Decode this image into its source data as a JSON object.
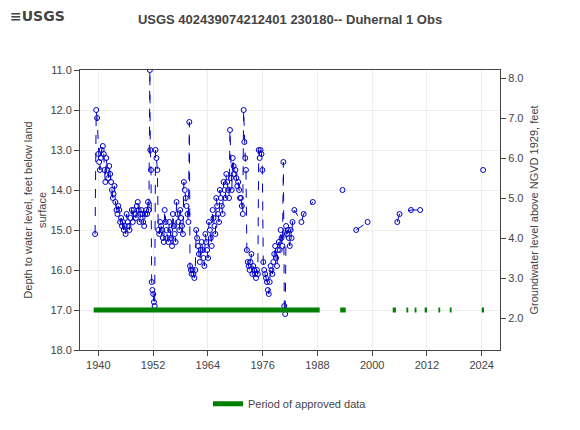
{
  "chart_data": {
    "type": "scatter",
    "title": "USGS 402439074212401 230180-- Duhernal 1 Obs",
    "annotations": [
      "≡USGS"
    ],
    "ylabel": "Depth to water level, feet below land\nsurface",
    "y2label": "Groundwater level above NGVD 1929, feet",
    "xlim": [
      1936,
      2028
    ],
    "xticks": [
      1940,
      1952,
      1964,
      1976,
      1988,
      2000,
      2012,
      2024
    ],
    "ylim": [
      18.0,
      11.0
    ],
    "yticks": [
      {
        "value": 11.0,
        "label": "11.0"
      },
      {
        "value": 12.0,
        "label": "12.0"
      },
      {
        "value": 13.0,
        "label": "13.0"
      },
      {
        "value": 14.0,
        "label": "14.0"
      },
      {
        "value": 15.0,
        "label": "15.0"
      },
      {
        "value": 16.0,
        "label": "16.0"
      },
      {
        "value": 17.0,
        "label": "17.0"
      },
      {
        "value": 18.0,
        "label": "18.0"
      }
    ],
    "y2lim": [
      1.2,
      8.2
    ],
    "y2ticks": [
      {
        "value": 2.0,
        "label": "2.0"
      },
      {
        "value": 3.0,
        "label": "3.0"
      },
      {
        "value": 4.0,
        "label": "4.0"
      },
      {
        "value": 5.0,
        "label": "5.0"
      },
      {
        "value": 6.0,
        "label": "6.0"
      },
      {
        "value": 7.0,
        "label": "7.0"
      },
      {
        "value": 8.0,
        "label": "8.0"
      }
    ],
    "grid": true,
    "legend": "bottom",
    "series": [
      {
        "type": "scatter",
        "color": "#0000cc",
        "marker": "open circle",
        "line_style": "dashed",
        "x": [
          1939.3,
          1939.55,
          1939.75,
          1940.0,
          1940.2,
          1940.35,
          1940.55,
          1940.75,
          1941.0,
          1941.2,
          1941.35,
          1941.55,
          1941.75,
          1942.0,
          1942.2,
          1942.4,
          1942.6,
          1942.8,
          1943.0,
          1943.2,
          1943.35,
          1943.55,
          1943.75,
          1944.0,
          1944.2,
          1944.4,
          1944.6,
          1944.8,
          1945.0,
          1945.2,
          1945.4,
          1945.6,
          1945.8,
          1946.0,
          1946.2,
          1946.45,
          1946.65,
          1946.85,
          1947.05,
          1947.35,
          1947.55,
          1947.75,
          1948.05,
          1948.25,
          1948.45,
          1948.65,
          1948.85,
          1949.05,
          1949.25,
          1949.45,
          1949.65,
          1949.85,
          1950.05,
          1950.3,
          1950.5,
          1950.7,
          1950.9,
          1951.1,
          1951.3,
          1951.4,
          1951.55,
          1951.7,
          1951.85,
          1952.05,
          1952.2,
          1952.35,
          1952.55,
          1952.75,
          1952.95,
          1953.15,
          1953.35,
          1953.55,
          1953.75,
          1953.95,
          1954.15,
          1954.35,
          1954.55,
          1954.75,
          1954.95,
          1955.15,
          1955.35,
          1955.55,
          1955.75,
          1955.95,
          1956.15,
          1956.35,
          1956.55,
          1956.75,
          1956.95,
          1957.15,
          1957.35,
          1957.55,
          1957.75,
          1957.95,
          1958.15,
          1958.35,
          1958.55,
          1958.75,
          1958.95,
          1959.15,
          1959.35,
          1959.55,
          1959.75,
          1959.95,
          1960.1,
          1960.3,
          1960.45,
          1960.65,
          1960.85,
          1961.05,
          1961.25,
          1961.45,
          1961.65,
          1961.85,
          1962.05,
          1962.25,
          1962.45,
          1962.65,
          1962.85,
          1963.05,
          1963.25,
          1963.45,
          1963.65,
          1963.85,
          1964.05,
          1964.25,
          1964.45,
          1964.65,
          1964.85,
          1965.05,
          1965.25,
          1965.45,
          1965.65,
          1965.85,
          1966.05,
          1966.25,
          1966.45,
          1966.65,
          1966.85,
          1967.05,
          1967.25,
          1967.45,
          1967.65,
          1967.85,
          1968.05,
          1968.25,
          1968.45,
          1968.65,
          1968.85,
          1969.05,
          1969.25,
          1969.45,
          1969.65,
          1969.85,
          1970.05,
          1970.25,
          1970.45,
          1970.65,
          1970.85,
          1971.05,
          1971.25,
          1971.45,
          1971.65,
          1971.85,
          1972.0,
          1972.2,
          1972.35,
          1972.55,
          1972.75,
          1972.95,
          1973.15,
          1973.35,
          1973.55,
          1973.75,
          1973.95,
          1974.15,
          1974.35,
          1974.55,
          1974.75,
          1974.95,
          1975.15,
          1975.35,
          1975.55,
          1975.75,
          1975.95,
          1976.15,
          1976.35,
          1976.55,
          1976.75,
          1976.95,
          1977.15,
          1977.35,
          1977.55,
          1977.75,
          1977.95,
          1978.15,
          1978.35,
          1978.55,
          1978.75,
          1978.95,
          1979.15,
          1979.35,
          1979.55,
          1979.75,
          1979.95,
          1980.15,
          1980.35,
          1980.55,
          1980.75,
          1980.95,
          1981.15,
          1981.35,
          1981.55,
          1981.75,
          1981.95,
          1982.15,
          1982.35,
          1982.55,
          1982.95,
          1984.5,
          1985.0,
          1987.0,
          null,
          1993.5,
          null,
          1996.5,
          1999.0,
          null,
          2005.5,
          2006.0,
          2008.5,
          2010.5,
          null,
          2024.3
        ],
        "values": [
          15.1,
          12.0,
          12.2,
          13.1,
          13.3,
          13.5,
          13.2,
          13.0,
          12.9,
          13.1,
          13.5,
          13.8,
          13.2,
          13.5,
          13.7,
          13.4,
          13.6,
          13.8,
          14.0,
          14.2,
          14.1,
          13.9,
          14.3,
          14.5,
          14.6,
          14.4,
          14.5,
          14.8,
          14.7,
          14.9,
          14.8,
          15.0,
          14.9,
          15.1,
          14.6,
          14.8,
          14.9,
          15.0,
          14.7,
          14.5,
          14.8,
          14.5,
          14.6,
          14.7,
          14.4,
          14.3,
          14.5,
          14.8,
          14.6,
          14.5,
          14.6,
          14.8,
          14.9,
          14.6,
          14.5,
          14.6,
          14.3,
          14.5,
          11.0,
          13.0,
          13.5,
          16.3,
          16.5,
          16.6,
          16.8,
          16.9,
          13.0,
          13.2,
          13.5,
          15.0,
          15.1,
          14.8,
          14.9,
          15.0,
          15.2,
          15.3,
          14.5,
          14.8,
          15.0,
          15.2,
          15.3,
          14.8,
          15.0,
          15.2,
          15.4,
          14.6,
          14.9,
          15.1,
          15.3,
          14.3,
          14.6,
          14.8,
          15.0,
          14.5,
          14.7,
          14.9,
          15.1,
          13.8,
          14.0,
          14.2,
          14.4,
          14.6,
          14.8,
          12.3,
          15.9,
          16.0,
          16.1,
          16.0,
          16.1,
          16.2,
          16.0,
          15.0,
          15.2,
          15.4,
          15.6,
          15.8,
          15.5,
          15.3,
          15.5,
          15.7,
          15.9,
          15.1,
          15.3,
          15.5,
          15.7,
          14.8,
          15.0,
          15.2,
          15.4,
          14.5,
          14.7,
          14.9,
          15.1,
          14.2,
          14.4,
          14.6,
          14.8,
          14.0,
          14.2,
          14.4,
          14.6,
          13.8,
          14.0,
          14.2,
          13.6,
          13.8,
          14.0,
          14.2,
          12.5,
          13.7,
          14.0,
          13.2,
          13.4,
          13.6,
          13.5,
          13.7,
          13.9,
          13.8,
          14.0,
          14.2,
          14.2,
          14.4,
          14.6,
          12.0,
          12.8,
          13.2,
          13.5,
          15.5,
          15.8,
          15.9,
          16.0,
          15.8,
          15.6,
          16.1,
          15.9,
          16.0,
          16.1,
          16.2,
          16.0,
          16.1,
          13.0,
          13.2,
          13.0,
          13.1,
          13.5,
          15.8,
          16.0,
          16.1,
          16.2,
          16.3,
          16.5,
          16.6,
          16.3,
          15.9,
          16.0,
          16.1,
          15.8,
          15.6,
          15.4,
          15.7,
          15.9,
          15.5,
          15.3,
          15.5,
          15.0,
          15.2,
          15.4,
          13.3,
          16.9,
          17.1,
          14.9,
          15.1,
          15.0,
          15.2,
          15.4,
          15.0,
          15.2,
          14.8,
          14.5,
          14.8,
          14.6,
          14.3,
          null,
          14.0,
          null,
          15.0,
          14.8,
          null,
          14.8,
          14.6,
          14.5,
          14.5,
          null,
          13.5
        ]
      },
      {
        "name": "Period of approved data",
        "type": "bar",
        "orientation": "horizontal",
        "color": "#008000",
        "y": 17.0,
        "periods": [
          [
            1939.0,
            1988.5
          ],
          [
            1993.0,
            1994.2
          ],
          [
            2004.5,
            2005.2
          ],
          [
            2007.5,
            2007.9
          ],
          [
            2009.3,
            2009.7
          ],
          [
            2011.5,
            2012.0
          ],
          [
            2014.5,
            2014.9
          ],
          [
            2017.0,
            2017.4
          ],
          [
            2024.0,
            2024.5
          ]
        ]
      }
    ]
  }
}
